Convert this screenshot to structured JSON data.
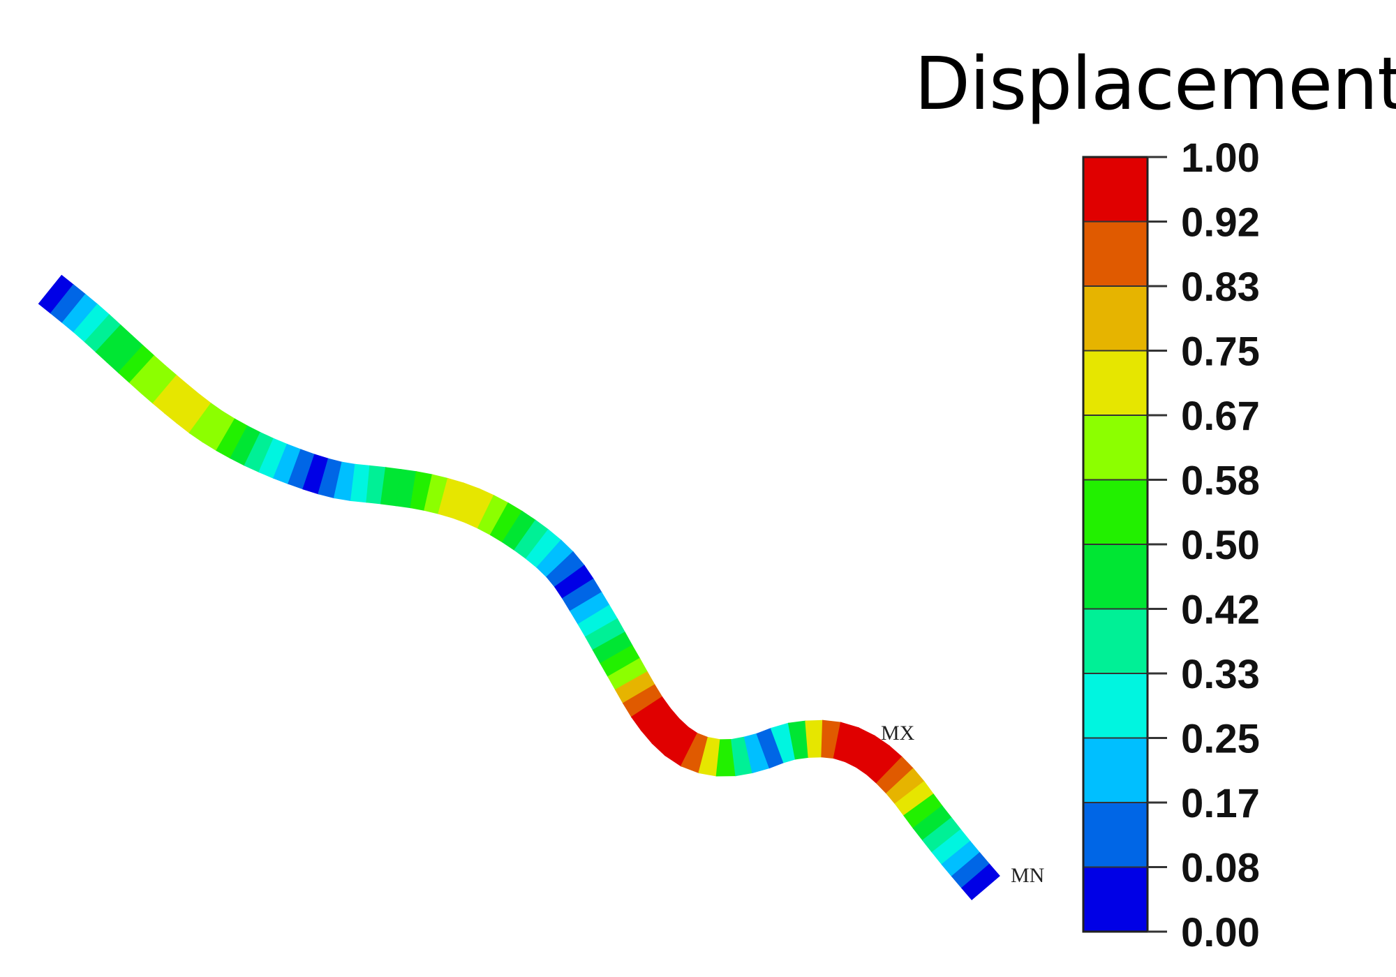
{
  "title": "Displacement",
  "scale": {
    "labels": [
      "1.00",
      "0.92",
      "0.83",
      "0.75",
      "0.67",
      "0.58",
      "0.50",
      "0.42",
      "0.33",
      "0.25",
      "0.17",
      "0.08",
      "0.00"
    ],
    "colors": [
      "#e00000",
      "#e05a00",
      "#e6b400",
      "#e6e600",
      "#8cff00",
      "#22f000",
      "#00e633",
      "#00f096",
      "#00f5e0",
      "#00bfff",
      "#0066e6",
      "#0000e6"
    ]
  },
  "markers": {
    "max": "MX",
    "min": "MN"
  },
  "beam_band_values": [
    0.04,
    0.1,
    0.18,
    0.26,
    0.34,
    0.42,
    0.5,
    0.56,
    0.62,
    0.66,
    0.7,
    0.72,
    0.7,
    0.66,
    0.6,
    0.54,
    0.46,
    0.38,
    0.3,
    0.22,
    0.14,
    0.06,
    0.1,
    0.18,
    0.26,
    0.34,
    0.42,
    0.5,
    0.58,
    0.64,
    0.7,
    0.72,
    0.68,
    0.6,
    0.52,
    0.44,
    0.36,
    0.28,
    0.2,
    0.14,
    0.06,
    0.12,
    0.2,
    0.28,
    0.36,
    0.46,
    0.56,
    0.66,
    0.76,
    0.86,
    0.95,
    1.0,
    0.98,
    0.94,
    0.86,
    0.72,
    0.56,
    0.4,
    0.24,
    0.1,
    0.3,
    0.5,
    0.7,
    0.88,
    0.98,
    1.0,
    0.97,
    0.92,
    0.84,
    0.76,
    0.68,
    0.58,
    0.48,
    0.38,
    0.28,
    0.18,
    0.1,
    0.03
  ]
}
